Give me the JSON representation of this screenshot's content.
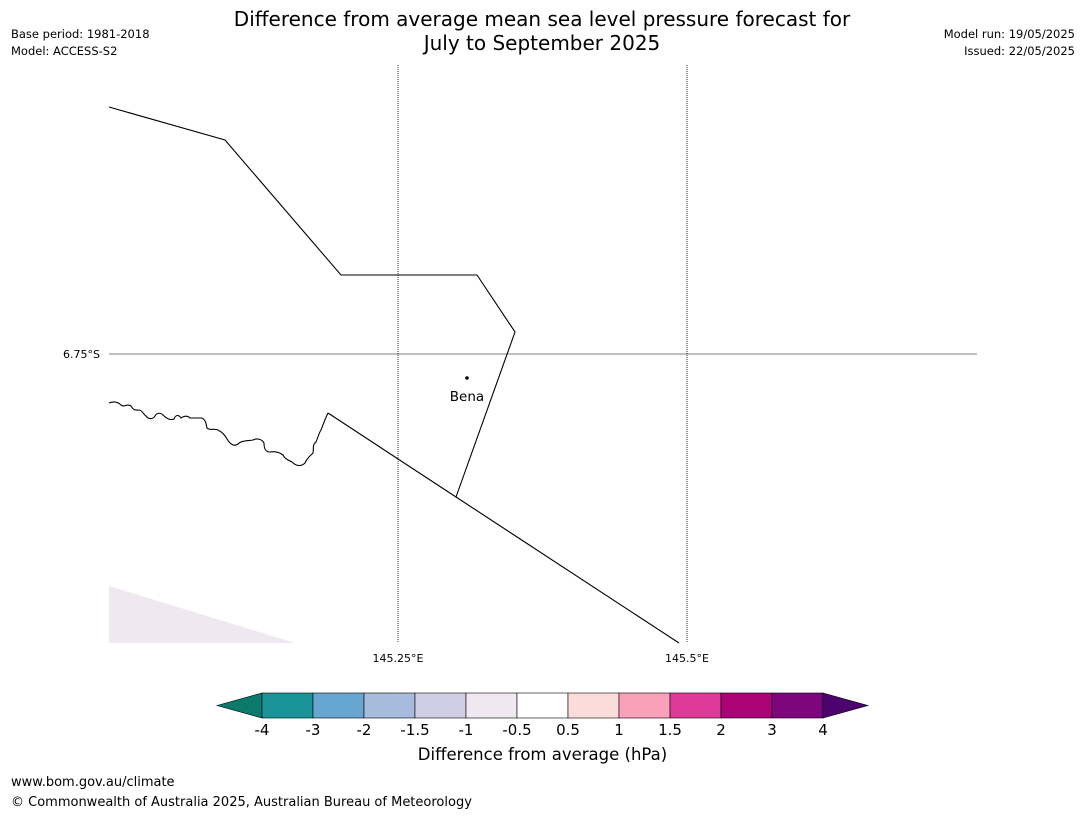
{
  "title": {
    "line1": "Difference from average mean sea level pressure forecast for",
    "line2": "July to September 2025"
  },
  "meta_left": {
    "base_period": "Base period: 1981-2018",
    "model": "Model: ACCESS-S2"
  },
  "meta_right": {
    "model_run": "Model run: 19/05/2025",
    "issued": "Issued: 22/05/2025"
  },
  "map": {
    "lat_labels": [
      "6.75°S"
    ],
    "lon_labels": [
      "145.25°E",
      "145.5°E"
    ],
    "place": "Bena",
    "shading_color": "#efe8f0"
  },
  "colorbar": {
    "label": "Difference from average (hPa)",
    "ticks": [
      "-4",
      "-3",
      "-2",
      "-1.5",
      "-1",
      "-0.5",
      "0.5",
      "1",
      "1.5",
      "2",
      "3",
      "4"
    ],
    "colors": [
      "#0b7a6c",
      "#1a9399",
      "#66a6d0",
      "#a7bbdc",
      "#d0cde6",
      "#efe8f0",
      "#ffffff",
      "#fcdcdb",
      "#f9a1b8",
      "#de3a97",
      "#ac0277",
      "#7e057c",
      "#4d036d"
    ]
  },
  "footer": {
    "url": "www.bom.gov.au/climate",
    "copyright": "© Commonwealth of Australia 2025, Australian Bureau of Meteorology"
  }
}
